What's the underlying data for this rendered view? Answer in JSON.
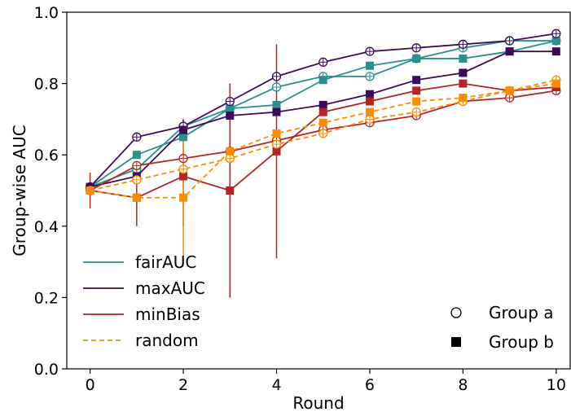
{
  "chart_data": {
    "type": "line",
    "xlabel": "Round",
    "ylabel": "Group-wise AUC",
    "xlim": [
      -0.5,
      10.3
    ],
    "ylim": [
      0.0,
      1.0
    ],
    "xticks": [
      0,
      2,
      4,
      6,
      8,
      10
    ],
    "yticks": [
      0.0,
      0.2,
      0.4,
      0.6,
      0.8,
      1.0
    ],
    "ytick_labels": [
      "0.0",
      "0.2",
      "0.4",
      "0.6",
      "0.8",
      "1.0"
    ],
    "grid": false,
    "legend_methods_location": "lower-left",
    "legend_groups_location": "lower-right",
    "x": [
      0,
      1,
      2,
      3,
      4,
      5,
      6,
      7,
      8,
      9,
      10
    ],
    "methods": [
      {
        "name": "fairAUC",
        "color": "#2a8f8f",
        "dash": "solid"
      },
      {
        "name": "maxAUC",
        "color": "#3d0a5a",
        "dash": "solid"
      },
      {
        "name": "minBias",
        "color": "#b52424",
        "dash": "solid"
      },
      {
        "name": "random",
        "color": "#ff8c00",
        "dash": "dashed"
      }
    ],
    "groups": [
      {
        "name": "Group a",
        "marker": "circle-open"
      },
      {
        "name": "Group b",
        "marker": "square-filled"
      }
    ],
    "series": [
      {
        "method": "fairAUC",
        "group": "Group a",
        "values": [
          0.51,
          0.56,
          0.68,
          0.73,
          0.79,
          0.82,
          0.82,
          0.87,
          0.9,
          0.92,
          0.92
        ],
        "err": [
          0,
          0,
          0,
          0,
          0,
          0,
          0,
          0,
          0,
          0,
          0
        ]
      },
      {
        "method": "fairAUC",
        "group": "Group b",
        "values": [
          0.51,
          0.6,
          0.65,
          0.73,
          0.74,
          0.81,
          0.85,
          0.87,
          0.87,
          0.89,
          0.92
        ],
        "err": [
          0,
          0,
          0,
          0,
          0,
          0,
          0,
          0,
          0,
          0,
          0
        ]
      },
      {
        "method": "maxAUC",
        "group": "Group a",
        "values": [
          0.51,
          0.65,
          0.68,
          0.75,
          0.82,
          0.86,
          0.89,
          0.9,
          0.91,
          0.92,
          0.94
        ],
        "err": [
          0,
          0,
          0,
          0,
          0,
          0,
          0,
          0,
          0,
          0,
          0
        ]
      },
      {
        "method": "maxAUC",
        "group": "Group b",
        "values": [
          0.51,
          0.54,
          0.67,
          0.71,
          0.72,
          0.74,
          0.77,
          0.81,
          0.83,
          0.89,
          0.89
        ],
        "err": [
          0,
          0,
          0.03,
          0,
          0,
          0,
          0,
          0,
          0,
          0,
          0
        ]
      },
      {
        "method": "minBias",
        "group": "Group a",
        "values": [
          0.5,
          0.57,
          0.59,
          0.61,
          0.64,
          0.67,
          0.69,
          0.71,
          0.75,
          0.76,
          0.78
        ],
        "err": [
          0,
          0,
          0,
          0,
          0,
          0,
          0,
          0,
          0,
          0,
          0
        ]
      },
      {
        "method": "minBias",
        "group": "Group b",
        "values": [
          0.5,
          0.48,
          0.54,
          0.5,
          0.61,
          0.72,
          0.75,
          0.78,
          0.8,
          0.78,
          0.79
        ],
        "err": [
          0.05,
          0.08,
          0.14,
          0.3,
          0.3,
          0,
          0,
          0,
          0,
          0,
          0
        ]
      },
      {
        "method": "random",
        "group": "Group a",
        "values": [
          0.5,
          0.53,
          0.56,
          0.59,
          0.63,
          0.66,
          0.7,
          0.72,
          0.75,
          0.78,
          0.81
        ],
        "err": [
          0,
          0,
          0,
          0,
          0,
          0,
          0,
          0,
          0,
          0,
          0
        ]
      },
      {
        "method": "random",
        "group": "Group b",
        "values": [
          0.5,
          0.48,
          0.48,
          0.61,
          0.66,
          0.69,
          0.72,
          0.75,
          0.76,
          0.78,
          0.8
        ],
        "err": [
          0,
          0,
          0.19,
          0,
          0,
          0,
          0,
          0,
          0,
          0,
          0
        ]
      }
    ]
  }
}
